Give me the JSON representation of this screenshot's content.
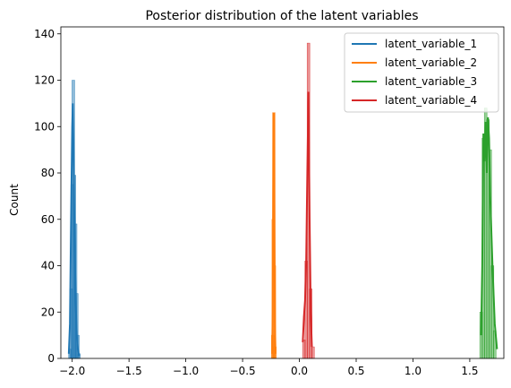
{
  "chart_data": {
    "type": "histogram",
    "title": "Posterior distribution of the latent variables",
    "xlabel": "",
    "ylabel": "Count",
    "xlim": [
      -2.1,
      1.8
    ],
    "ylim": [
      0,
      143
    ],
    "x_ticks": [
      -2.0,
      -1.5,
      -1.0,
      -0.5,
      0.0,
      0.5,
      1.0,
      1.5
    ],
    "x_tick_labels": [
      "−2.0",
      "−1.5",
      "−1.0",
      "−0.5",
      "0.0",
      "0.5",
      "1.0",
      "1.5"
    ],
    "y_ticks": [
      0,
      20,
      40,
      60,
      80,
      100,
      120,
      140
    ],
    "y_tick_labels": [
      "0",
      "20",
      "40",
      "60",
      "80",
      "100",
      "120",
      "140"
    ],
    "grid": false,
    "legend_position": "top-right",
    "series": [
      {
        "name": "latent_variable_1",
        "color": "#1f77b4",
        "hist_bins": [
          [
            -2.02,
            4
          ],
          [
            -2.01,
            30
          ],
          [
            -2.0,
            75
          ],
          [
            -1.99,
            120
          ],
          [
            -1.98,
            79
          ],
          [
            -1.97,
            58
          ],
          [
            -1.96,
            28
          ],
          [
            -1.95,
            10
          ],
          [
            -1.94,
            2
          ]
        ],
        "kde": [
          [
            -2.03,
            2
          ],
          [
            -2.02,
            15
          ],
          [
            -2.01,
            60
          ],
          [
            -2.0,
            100
          ],
          [
            -1.995,
            110
          ],
          [
            -1.99,
            95
          ],
          [
            -1.98,
            55
          ],
          [
            -1.97,
            25
          ],
          [
            -1.96,
            10
          ],
          [
            -1.95,
            4
          ],
          [
            -1.94,
            1
          ]
        ]
      },
      {
        "name": "latent_variable_2",
        "color": "#ff7f0e",
        "hist_bins": [
          [
            -0.235,
            10
          ],
          [
            -0.23,
            60
          ],
          [
            -0.225,
            106
          ],
          [
            -0.22,
            40
          ],
          [
            -0.215,
            5
          ]
        ],
        "kde": [
          [
            -0.24,
            2
          ],
          [
            -0.235,
            20
          ],
          [
            -0.23,
            70
          ],
          [
            -0.225,
            106
          ],
          [
            -0.22,
            60
          ],
          [
            -0.215,
            15
          ],
          [
            -0.21,
            2
          ]
        ]
      },
      {
        "name": "latent_variable_3",
        "color": "#2ca02c",
        "hist_bins": [
          [
            1.6,
            20
          ],
          [
            1.62,
            95
          ],
          [
            1.64,
            108
          ],
          [
            1.66,
            103
          ],
          [
            1.68,
            90
          ],
          [
            1.7,
            40
          ],
          [
            1.72,
            12
          ]
        ],
        "kde": [
          [
            1.6,
            10
          ],
          [
            1.61,
            40
          ],
          [
            1.62,
            97
          ],
          [
            1.63,
            85
          ],
          [
            1.64,
            102
          ],
          [
            1.65,
            80
          ],
          [
            1.66,
            104
          ],
          [
            1.67,
            95
          ],
          [
            1.68,
            70
          ],
          [
            1.7,
            40
          ],
          [
            1.72,
            15
          ],
          [
            1.74,
            4
          ]
        ]
      },
      {
        "name": "latent_variable_4",
        "color": "#d62728",
        "hist_bins": [
          [
            0.04,
            8
          ],
          [
            0.06,
            42
          ],
          [
            0.08,
            136
          ],
          [
            0.1,
            30
          ],
          [
            0.12,
            5
          ]
        ],
        "kde": [
          [
            0.03,
            7
          ],
          [
            0.04,
            18
          ],
          [
            0.05,
            25
          ],
          [
            0.06,
            42
          ],
          [
            0.07,
            80
          ],
          [
            0.08,
            115
          ],
          [
            0.09,
            60
          ],
          [
            0.1,
            20
          ],
          [
            0.11,
            5
          ]
        ]
      }
    ]
  }
}
